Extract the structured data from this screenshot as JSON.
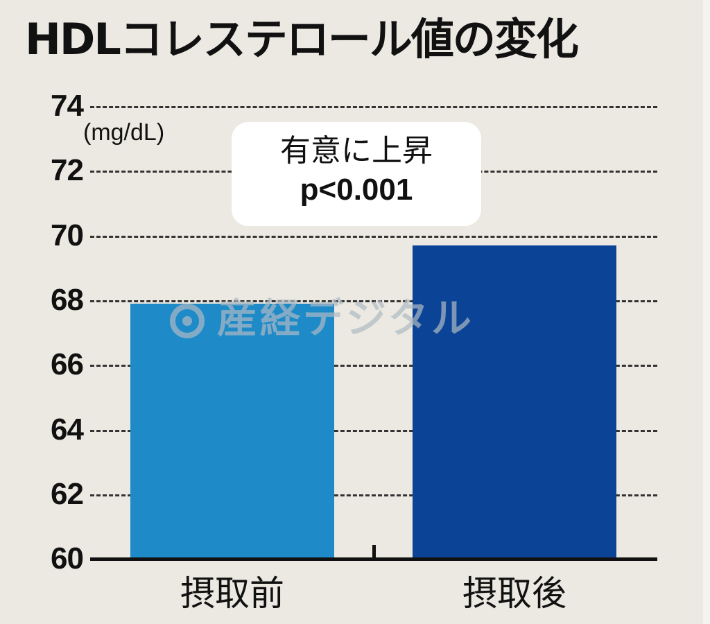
{
  "chart_data": {
    "type": "bar",
    "title": "HDLコレステロール値の変化",
    "xlabel": "",
    "ylabel": "(mg/dL)",
    "categories": [
      "摂取前",
      "摂取後"
    ],
    "values": [
      67.9,
      69.7
    ],
    "colors": [
      "#1e8bc8",
      "#0b4496"
    ],
    "ylim": [
      60,
      74
    ],
    "yticks": [
      60,
      62,
      64,
      66,
      68,
      70,
      72,
      74
    ],
    "grid": true,
    "annotations": [
      {
        "text": "有意に上昇",
        "line2": "p<0.001"
      }
    ],
    "watermark": "産経デジタル"
  },
  "title": "HDLコレステロール値の変化",
  "unit": "(mg/dL)",
  "ticks": [
    "74",
    "72",
    "70",
    "68",
    "66",
    "64",
    "62",
    "60"
  ],
  "categories": [
    "摂取前",
    "摂取後"
  ],
  "annotation": {
    "line1": "有意に上昇",
    "line2": "p<0.001"
  },
  "watermark": "産経デジタル"
}
